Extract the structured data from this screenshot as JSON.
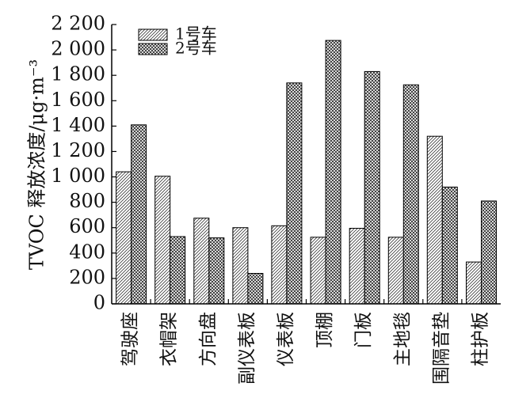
{
  "chart_data": {
    "type": "bar",
    "title": "",
    "xlabel": "",
    "ylabel": "TVOC 释放浓度/μg·m⁻³",
    "ylim": [
      0,
      2200
    ],
    "yticks": [
      0,
      200,
      400,
      600,
      800,
      1000,
      1200,
      1400,
      1600,
      1800,
      2000,
      2200
    ],
    "ytick_labels": [
      "0",
      "200",
      "400",
      "600",
      "800",
      "1 000",
      "1 200",
      "1 400",
      "1 600",
      "1 800",
      "2 000",
      "2 200"
    ],
    "categories": [
      "驾驶座",
      "衣帽架",
      "方向盘",
      "副仪表板",
      "仪表板",
      "顶棚",
      "门板",
      "主地毯",
      "围隔音垫",
      "柱护板"
    ],
    "series": [
      {
        "name": "1号车",
        "pattern": "diagonal-hatch",
        "values": [
          1040,
          1005,
          675,
          600,
          615,
          525,
          595,
          525,
          1320,
          330
        ]
      },
      {
        "name": "2号车",
        "pattern": "crosshatch",
        "values": [
          1410,
          530,
          520,
          240,
          1740,
          2075,
          1830,
          1725,
          920,
          810
        ]
      }
    ],
    "legend_position": "top-left",
    "grid": false
  }
}
